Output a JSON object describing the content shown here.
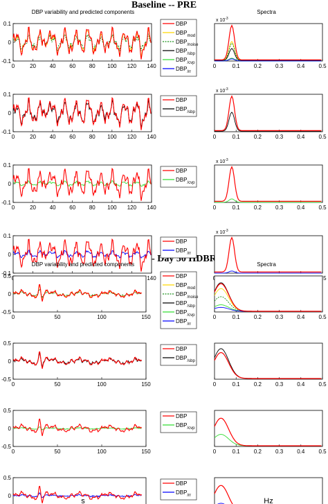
{
  "sections": [
    {
      "title": "Baseline -- PRE",
      "left_header": "DBP variability and predicted components",
      "right_header": "Spectra",
      "x_label_left": "s",
      "x_label_right": "Hz"
    },
    {
      "title": "Baseline -- Day 50 HDBR",
      "left_header": "DBP variability and predicted components",
      "right_header": "Spectra",
      "x_label_left": "s",
      "x_label_right": "Hz"
    }
  ],
  "colors": {
    "dbp": "#ff0000",
    "mod": "#ffd700",
    "noise": "#1a8f1a",
    "sbp": "#000000",
    "cvp": "#33dd33",
    "rr": "#0000ff"
  },
  "chart_data": [
    {
      "type": "line",
      "title": "Baseline -- PRE",
      "time_panels": {
        "x_ticks": [
          0,
          20,
          40,
          60,
          80,
          100,
          120,
          140
        ],
        "xlim": [
          0,
          140
        ],
        "ylim": [
          -0.1,
          0.1
        ],
        "y_ticks": [
          "0.1",
          "0",
          "-0.1"
        ],
        "dbp_peaks_approx": [
          {
            "x": 35,
            "y": 0.09
          },
          {
            "x": 75,
            "y": 0.07
          },
          {
            "x": 95,
            "y": 0.06
          }
        ],
        "panels": [
          {
            "legend": [
              "DBP",
              "DBP_mod",
              "DBP_/noise",
              "DBP_/sbp",
              "DBP_/cvp",
              "DBP_/rr"
            ],
            "series": [
              "dbp",
              "mod",
              "noise"
            ]
          },
          {
            "legend": [
              "DBP",
              "DBP_/sbp"
            ],
            "series": [
              "dbp",
              "sbp"
            ]
          },
          {
            "legend": [
              "DBP",
              "DBP_/cvp"
            ],
            "series": [
              "dbp",
              "cvp"
            ]
          },
          {
            "legend": [
              "DBP",
              "DBP_/rr"
            ],
            "series": [
              "dbp",
              "rr"
            ]
          }
        ]
      },
      "spectra_panels": {
        "x_ticks": [
          "0",
          "0.1",
          "0.2",
          "0.3",
          "0.4",
          "0.5"
        ],
        "xlim": [
          0,
          0.5
        ],
        "y_exponent": "x 10",
        "y_exponent_power": "-3",
        "peak_hz": 0.08,
        "panels": [
          {
            "series": [
              {
                "key": "dbp",
                "peak": 1.0
              },
              {
                "key": "mod",
                "peak": 0.55
              },
              {
                "key": "noise",
                "peak": 0.5
              },
              {
                "key": "sbp",
                "peak": 0.35
              },
              {
                "key": "cvp",
                "peak": 0.08
              },
              {
                "key": "rr",
                "peak": 0.06
              }
            ]
          },
          {
            "series": [
              {
                "key": "dbp",
                "peak": 1.0
              },
              {
                "key": "sbp",
                "peak": 0.55
              }
            ]
          },
          {
            "series": [
              {
                "key": "dbp",
                "peak": 1.0
              },
              {
                "key": "cvp",
                "peak": 0.1
              }
            ]
          },
          {
            "series": [
              {
                "key": "dbp",
                "peak": 1.0
              },
              {
                "key": "rr",
                "peak": 0.06
              }
            ]
          }
        ]
      }
    },
    {
      "type": "line",
      "title": "Baseline -- Day 50 HDBR",
      "time_panels": {
        "x_ticks": [
          0,
          50,
          100,
          150
        ],
        "xlim": [
          0,
          150
        ],
        "ylim": [
          -0.5,
          0.5
        ],
        "y_ticks": [
          "0.5",
          "0",
          "-0.5"
        ],
        "dbp_spike_approx": {
          "x": 30,
          "y": 0.35
        },
        "panels": [
          {
            "legend": [
              "DBP",
              "DBP_mod",
              "DBP_/noise",
              "DBP_/sbp",
              "DBP_/cvp",
              "DBP_/rr"
            ],
            "series": [
              "dbp",
              "mod",
              "noise"
            ]
          },
          {
            "legend": [
              "DBP",
              "DBP_/sbp"
            ],
            "series": [
              "dbp",
              "sbp"
            ]
          },
          {
            "legend": [
              "DBP",
              "DBP_/cvp"
            ],
            "series": [
              "dbp",
              "cvp"
            ]
          },
          {
            "legend": [
              "DBP",
              "DBP_/rr"
            ],
            "series": [
              "dbp",
              "rr"
            ]
          }
        ]
      },
      "spectra_panels": {
        "x_ticks": [
          "0",
          "0.1",
          "0.2",
          "0.3",
          "0.4",
          "0.5"
        ],
        "xlim": [
          0,
          0.5
        ],
        "y_exponent": "",
        "y_exponent_power": "",
        "peak_hz": 0.03,
        "panels": [
          {
            "series": [
              {
                "key": "dbp",
                "peak": 0.85
              },
              {
                "key": "mod",
                "peak": 0.7
              },
              {
                "key": "noise",
                "peak": 0.45
              },
              {
                "key": "sbp",
                "peak": 0.88
              },
              {
                "key": "cvp",
                "peak": 0.2
              },
              {
                "key": "rr",
                "peak": 0.12
              }
            ]
          },
          {
            "series": [
              {
                "key": "dbp",
                "peak": 0.8
              },
              {
                "key": "sbp",
                "peak": 0.92
              }
            ]
          },
          {
            "series": [
              {
                "key": "dbp",
                "peak": 0.85
              },
              {
                "key": "cvp",
                "peak": 0.35
              }
            ]
          },
          {
            "series": [
              {
                "key": "dbp",
                "peak": 0.85
              },
              {
                "key": "rr",
                "peak": 0.3
              }
            ]
          }
        ]
      }
    }
  ]
}
